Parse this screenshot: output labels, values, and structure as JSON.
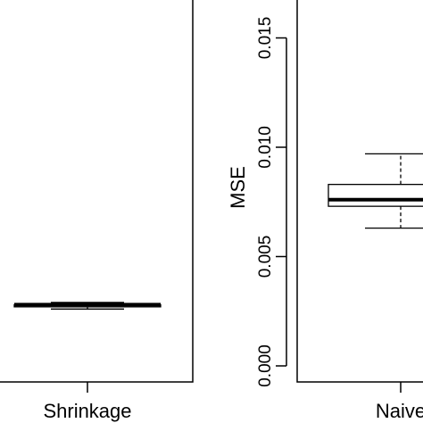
{
  "chart_data": [
    {
      "type": "boxplot",
      "categories": [
        "Shrinkage"
      ],
      "boxes": [
        {
          "name": "Shrinkage",
          "min": 0.0026,
          "q1": 0.0027,
          "median": 0.0028,
          "q3": 0.0028,
          "max": 0.0029
        }
      ]
    },
    {
      "type": "boxplot",
      "categories": [
        "Naive"
      ],
      "ylabel": "MSE",
      "ylim": [
        0.0,
        0.016
      ],
      "yticks": [
        0.0,
        0.005,
        0.01,
        0.015
      ],
      "yticklabels": [
        "0.000",
        "0.005",
        "0.010",
        "0.015"
      ],
      "boxes": [
        {
          "name": "Naive",
          "min": 0.0063,
          "q1": 0.0073,
          "median": 0.0076,
          "q3": 0.0083,
          "max": 0.0097
        }
      ]
    }
  ]
}
